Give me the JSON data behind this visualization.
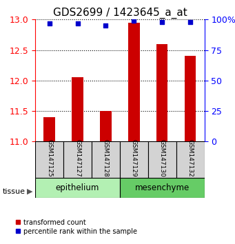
{
  "title": "GDS2699 / 1423645_a_at",
  "samples": [
    "GSM147125",
    "GSM147127",
    "GSM147128",
    "GSM147129",
    "GSM147130",
    "GSM147132"
  ],
  "red_values": [
    11.4,
    12.05,
    11.5,
    12.95,
    12.6,
    12.4
  ],
  "blue_values": [
    97,
    97,
    95,
    99,
    98,
    98
  ],
  "ylim_left": [
    11,
    13
  ],
  "ylim_right": [
    0,
    100
  ],
  "yticks_left": [
    11,
    11.5,
    12,
    12.5,
    13
  ],
  "yticks_right": [
    0,
    25,
    50,
    75,
    100
  ],
  "groups": [
    {
      "label": "epithelium",
      "indices": [
        0,
        1,
        2
      ],
      "color": "#b3f0b3"
    },
    {
      "label": "mesenchyme",
      "indices": [
        3,
        4,
        5
      ],
      "color": "#66cc66"
    }
  ],
  "bar_color": "#CC0000",
  "dot_color": "#0000CC",
  "bar_width": 0.4,
  "title_fontsize": 11,
  "tick_fontsize": 9,
  "background_color": "#ffffff",
  "sample_box_color": "#d3d3d3"
}
